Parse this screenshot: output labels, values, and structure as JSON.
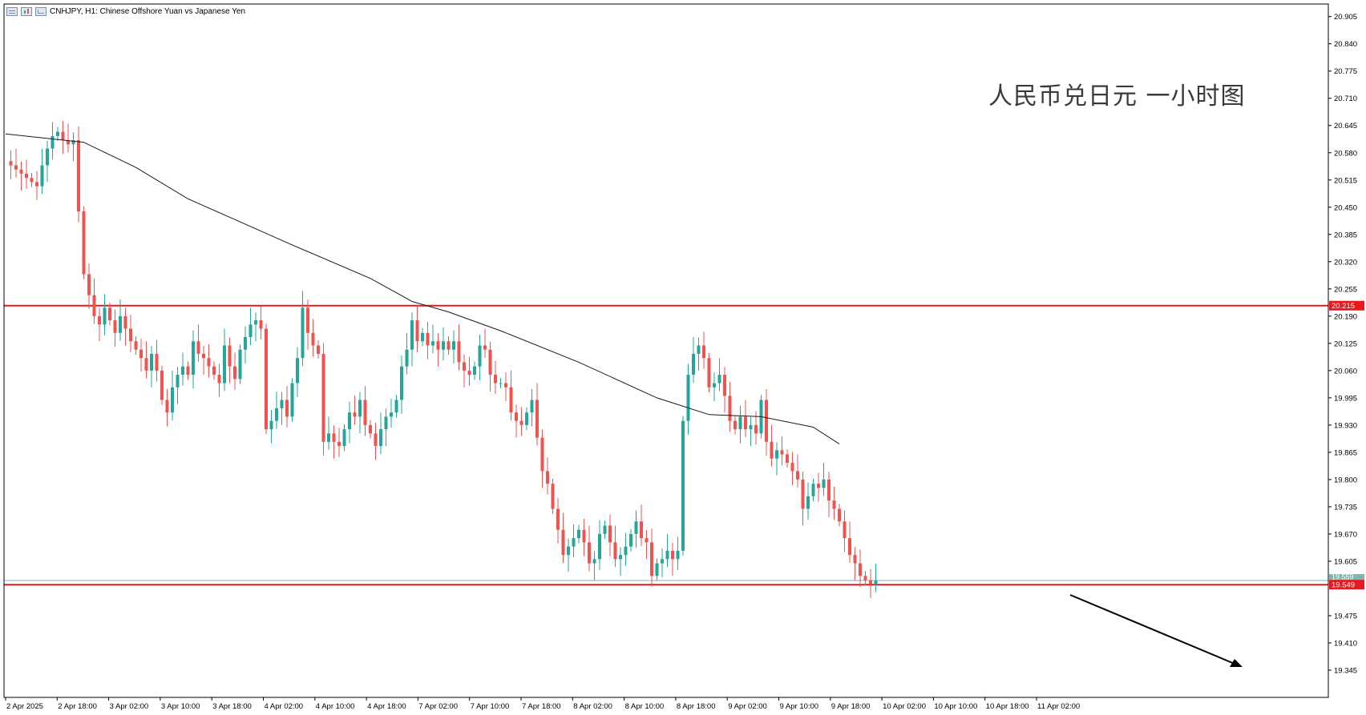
{
  "header": {
    "title": "CNHJPY, H1:  Chinese Offshore Yuan vs Japanese Yen"
  },
  "annotation": "人民币兑日元 一小时图",
  "colors": {
    "up": "#26a69a",
    "down": "#ef5350",
    "ma": "#1a1a1a",
    "level": "#e8191c",
    "bid": "#7fb7b0"
  },
  "chart_data": {
    "type": "candlestick",
    "symbol": "CNHJPY",
    "timeframe": "H1",
    "title": "CNHJPY, H1:  Chinese Offshore Yuan vs Japanese Yen",
    "ylim": [
      19.28,
      20.935
    ],
    "y_ticks": [
      "20.905",
      "20.840",
      "20.775",
      "20.710",
      "20.645",
      "20.580",
      "20.515",
      "20.450",
      "20.385",
      "20.320",
      "20.255",
      "20.190",
      "20.125",
      "20.060",
      "19.995",
      "19.930",
      "19.865",
      "19.800",
      "19.735",
      "19.670",
      "19.605",
      "19.475",
      "19.410",
      "19.345"
    ],
    "x_ticks": [
      "2 Apr 2025",
      "2 Apr 18:00",
      "3 Apr 02:00",
      "3 Apr 10:00",
      "3 Apr 18:00",
      "4 Apr 02:00",
      "4 Apr 10:00",
      "4 Apr 18:00",
      "7 Apr 02:00",
      "7 Apr 10:00",
      "7 Apr 18:00",
      "8 Apr 02:00",
      "8 Apr 10:00",
      "8 Apr 18:00",
      "9 Apr 02:00",
      "9 Apr 10:00",
      "9 Apr 18:00",
      "10 Apr 02:00",
      "10 Apr 10:00",
      "10 Apr 18:00",
      "11 Apr 02:00"
    ],
    "levels": [
      {
        "price": 20.215,
        "label": "20.215"
      },
      {
        "price": 19.549,
        "label": "19.549"
      }
    ],
    "bid_line": {
      "price": 19.559,
      "label": "19.559"
    },
    "closes": [
      20.56,
      20.55,
      20.54,
      20.53,
      20.52,
      20.51,
      20.5,
      20.55,
      20.59,
      20.62,
      20.63,
      20.61,
      20.6,
      20.61,
      20.44,
      20.29,
      20.24,
      20.19,
      20.17,
      20.21,
      20.18,
      20.15,
      20.19,
      20.16,
      20.13,
      20.11,
      20.09,
      20.06,
      20.1,
      20.06,
      19.99,
      19.96,
      20.02,
      20.05,
      20.07,
      20.05,
      20.13,
      20.1,
      20.09,
      20.07,
      20.05,
      20.03,
      20.12,
      20.07,
      20.04,
      20.11,
      20.14,
      20.17,
      20.18,
      20.16,
      19.92,
      19.94,
      19.97,
      19.99,
      19.95,
      20.03,
      20.09,
      20.21,
      20.15,
      20.12,
      20.1,
      19.89,
      19.91,
      19.89,
      19.88,
      19.92,
      19.96,
      19.95,
      19.99,
      19.93,
      19.91,
      19.88,
      19.92,
      19.95,
      19.96,
      19.99,
      20.07,
      20.11,
      20.18,
      20.13,
      20.15,
      20.12,
      20.13,
      20.11,
      20.13,
      20.11,
      20.13,
      20.08,
      20.06,
      20.05,
      20.07,
      20.12,
      20.11,
      20.05,
      20.03,
      20.03,
      20.02,
      19.96,
      19.94,
      19.93,
      19.96,
      19.99,
      19.9,
      19.82,
      19.79,
      19.73,
      19.68,
      19.62,
      19.64,
      19.66,
      19.68,
      19.65,
      19.6,
      19.61,
      19.67,
      19.69,
      19.65,
      19.61,
      19.62,
      19.64,
      19.67,
      19.7,
      19.66,
      19.65,
      19.57,
      19.6,
      19.61,
      19.63,
      19.61,
      19.63,
      19.94,
      20.05,
      20.1,
      20.12,
      20.09,
      20.02,
      20.03,
      20.05,
      20.0,
      19.94,
      19.92,
      19.95,
      19.92,
      19.93,
      19.91,
      19.99,
      19.89,
      19.85,
      19.87,
      19.86,
      19.84,
      19.82,
      19.8,
      19.73,
      19.76,
      19.79,
      19.78,
      19.8,
      19.75,
      19.73,
      19.7,
      19.66,
      19.62,
      19.6,
      19.57,
      19.56,
      19.55,
      19.559
    ],
    "moving_average": {
      "x_index": [
        0,
        15,
        25,
        35,
        45,
        55,
        70,
        78,
        85,
        95,
        110,
        125,
        135,
        145,
        155,
        160
      ],
      "y": [
        20.625,
        20.605,
        20.545,
        20.47,
        20.415,
        20.36,
        20.28,
        20.225,
        20.2,
        20.155,
        20.08,
        19.995,
        19.955,
        19.95,
        19.925,
        19.885
      ]
    }
  }
}
